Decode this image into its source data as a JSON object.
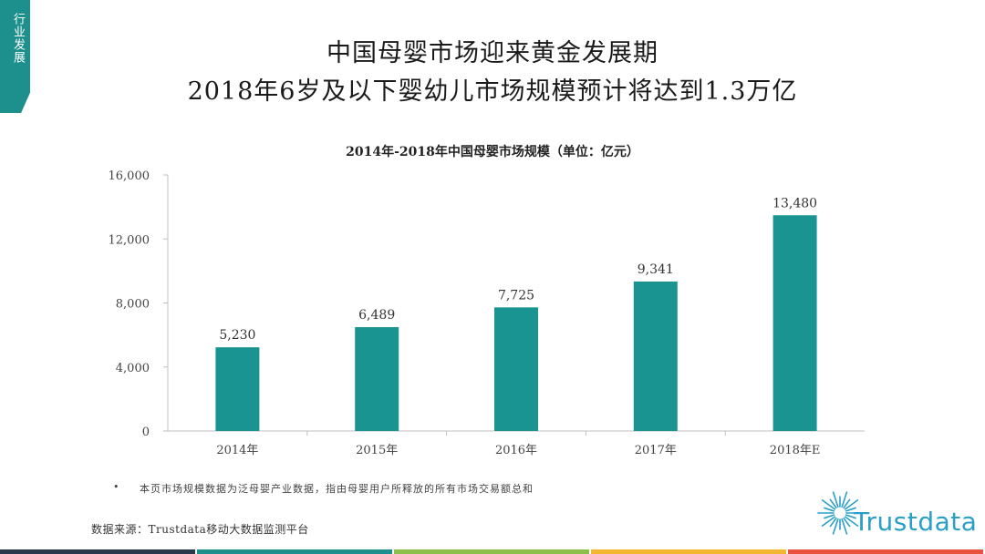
{
  "side_tab": {
    "label": "行业发展"
  },
  "header": {
    "title_line1": "中国母婴市场迎来黄金发展期",
    "title_line2": "2018年6岁及以下婴幼儿市场规模预计将达到1.3万亿"
  },
  "chart_data": {
    "type": "bar",
    "title": "2014年-2018年中国母婴市场规模（单位：亿元）",
    "categories": [
      "2014年",
      "2015年",
      "2016年",
      "2017年",
      "2018年E"
    ],
    "values": [
      5230,
      6489,
      7725,
      9341,
      13480
    ],
    "value_labels": [
      "5,230",
      "6,489",
      "7,725",
      "9,341",
      "13,480"
    ],
    "ylim": [
      0,
      16000
    ],
    "yticks": [
      0,
      4000,
      8000,
      12000,
      16000
    ],
    "ytick_labels": [
      "0",
      "4,000",
      "8,000",
      "12,000",
      "16,000"
    ],
    "bar_color": "#1a9490",
    "grid": false,
    "legend": "none"
  },
  "note": {
    "bullet": "•",
    "text": "本页市场规模数据为泛母婴产业数据，指由母婴用户所释放的所有市场交易额总和"
  },
  "source": {
    "text": "数据来源：Trustdata移动大数据监测平台"
  },
  "logo": {
    "text": "Trustdata",
    "icon": "sunburst-logo-icon",
    "color": "#2a9fc7"
  },
  "bottom_bar_colors": [
    "#2b3a4a",
    "#1d8f8c",
    "#8cc04b",
    "#f2b632",
    "#e8533f"
  ]
}
